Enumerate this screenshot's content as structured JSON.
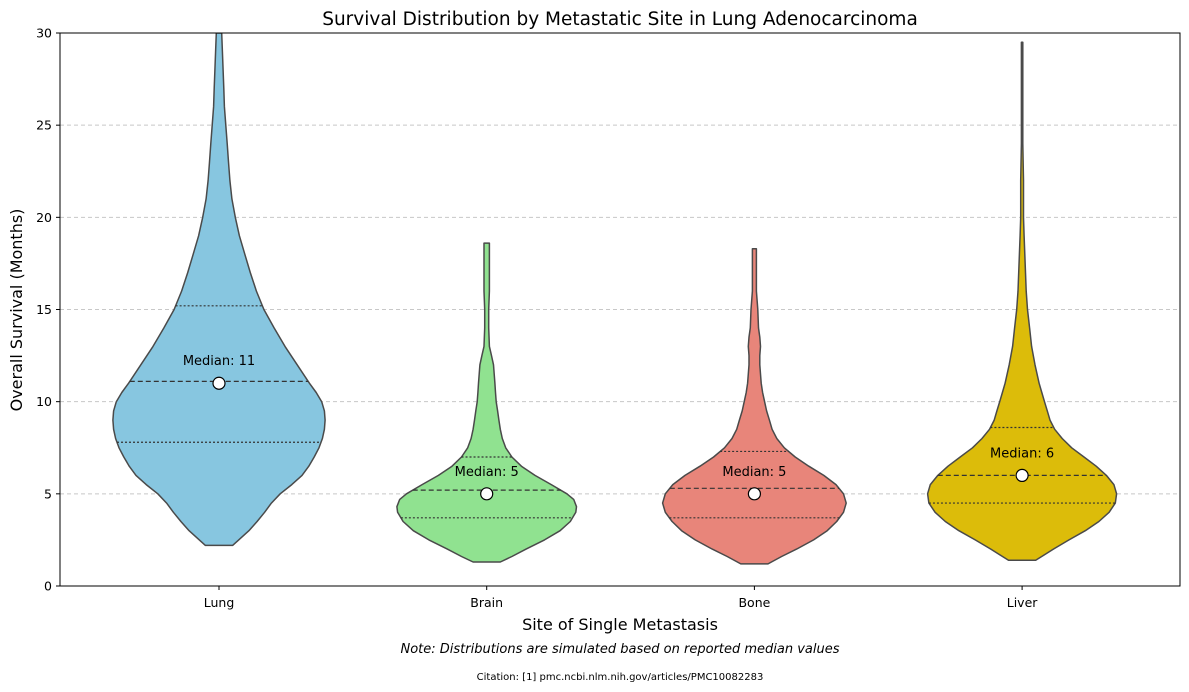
{
  "chart_data": {
    "type": "violin",
    "title": "Survival Distribution by Metastatic Site in Lung Adenocarcinoma",
    "xlabel": "Site of Single Metastasis",
    "ylabel": "Overall Survival (Months)",
    "ylim": [
      0,
      30
    ],
    "yticks": [
      0,
      5,
      10,
      15,
      20,
      25,
      30
    ],
    "grid": "y-dashed",
    "categories": [
      "Lung",
      "Brain",
      "Bone",
      "Liver"
    ],
    "colors": [
      "#87c6e0",
      "#90e290",
      "#e8857a",
      "#dcbc0a"
    ],
    "medians": [
      11,
      5,
      5,
      6
    ],
    "median_labels": [
      "Median: 11",
      "Median: 5",
      "Median: 5",
      "Median: 6"
    ],
    "quartiles": [
      {
        "q1": 7.8,
        "q2": 11.1,
        "q3": 15.2
      },
      {
        "q1": 3.7,
        "q2": 5.2,
        "q3": 7.0
      },
      {
        "q1": 3.7,
        "q2": 5.3,
        "q3": 7.3
      },
      {
        "q1": 4.5,
        "q2": 6.0,
        "q3": 8.6
      }
    ],
    "violins": [
      {
        "name": "Lung",
        "profile": [
          [
            2.2,
            0.2
          ],
          [
            2.5,
            0.29
          ],
          [
            3,
            0.44
          ],
          [
            3.5,
            0.56
          ],
          [
            4,
            0.67
          ],
          [
            4.5,
            0.77
          ],
          [
            5,
            0.9
          ],
          [
            5.5,
            1.07
          ],
          [
            6,
            1.22
          ],
          [
            6.5,
            1.32
          ],
          [
            7,
            1.4
          ],
          [
            7.5,
            1.47
          ],
          [
            8,
            1.52
          ],
          [
            8.5,
            1.55
          ],
          [
            9,
            1.56
          ],
          [
            9.5,
            1.55
          ],
          [
            10,
            1.51
          ],
          [
            10.5,
            1.43
          ],
          [
            11,
            1.33
          ],
          [
            12,
            1.15
          ],
          [
            13,
            0.97
          ],
          [
            14,
            0.81
          ],
          [
            15,
            0.66
          ],
          [
            16,
            0.55
          ],
          [
            17,
            0.46
          ],
          [
            18,
            0.38
          ],
          [
            19,
            0.3
          ],
          [
            20,
            0.24
          ],
          [
            21,
            0.19
          ],
          [
            22,
            0.16
          ],
          [
            23,
            0.14
          ],
          [
            24,
            0.12
          ],
          [
            25,
            0.1
          ],
          [
            26,
            0.08
          ],
          [
            27,
            0.07
          ],
          [
            28,
            0.06
          ],
          [
            29,
            0.05
          ],
          [
            30,
            0.04
          ]
        ]
      },
      {
        "name": "Brain",
        "profile": [
          [
            1.3,
            0.2
          ],
          [
            1.6,
            0.37
          ],
          [
            2,
            0.58
          ],
          [
            2.5,
            0.85
          ],
          [
            3,
            1.08
          ],
          [
            3.5,
            1.23
          ],
          [
            4,
            1.31
          ],
          [
            4.3,
            1.32
          ],
          [
            4.7,
            1.28
          ],
          [
            5,
            1.18
          ],
          [
            5.5,
            0.95
          ],
          [
            6,
            0.71
          ],
          [
            6.5,
            0.51
          ],
          [
            7,
            0.37
          ],
          [
            7.5,
            0.28
          ],
          [
            8,
            0.23
          ],
          [
            8.5,
            0.2
          ],
          [
            9,
            0.18
          ],
          [
            9.5,
            0.16
          ],
          [
            10,
            0.14
          ],
          [
            10.5,
            0.13
          ],
          [
            11,
            0.12
          ],
          [
            11.5,
            0.11
          ],
          [
            12,
            0.1
          ],
          [
            12.5,
            0.07
          ],
          [
            13,
            0.04
          ],
          [
            14,
            0.03
          ],
          [
            15,
            0.03
          ],
          [
            16,
            0.04
          ],
          [
            17,
            0.04
          ],
          [
            18,
            0.04
          ],
          [
            18.6,
            0.04
          ]
        ]
      },
      {
        "name": "Bone",
        "profile": [
          [
            1.2,
            0.2
          ],
          [
            1.6,
            0.4
          ],
          [
            2,
            0.62
          ],
          [
            2.5,
            0.87
          ],
          [
            3,
            1.07
          ],
          [
            3.5,
            1.21
          ],
          [
            4,
            1.31
          ],
          [
            4.5,
            1.35
          ],
          [
            5,
            1.31
          ],
          [
            5.5,
            1.2
          ],
          [
            6,
            1.02
          ],
          [
            6.5,
            0.8
          ],
          [
            7,
            0.6
          ],
          [
            7.5,
            0.44
          ],
          [
            8,
            0.33
          ],
          [
            8.5,
            0.26
          ],
          [
            9,
            0.22
          ],
          [
            9.5,
            0.18
          ],
          [
            10,
            0.15
          ],
          [
            10.5,
            0.12
          ],
          [
            11,
            0.1
          ],
          [
            11.5,
            0.09
          ],
          [
            12,
            0.08
          ],
          [
            12.5,
            0.08
          ],
          [
            13,
            0.09
          ],
          [
            13.5,
            0.08
          ],
          [
            14,
            0.06
          ],
          [
            15,
            0.05
          ],
          [
            16,
            0.03
          ],
          [
            17,
            0.03
          ],
          [
            18,
            0.03
          ],
          [
            18.3,
            0.03
          ]
        ]
      },
      {
        "name": "Liver",
        "profile": [
          [
            1.4,
            0.2
          ],
          [
            1.7,
            0.33
          ],
          [
            2,
            0.46
          ],
          [
            2.5,
            0.69
          ],
          [
            3,
            0.93
          ],
          [
            3.5,
            1.13
          ],
          [
            4,
            1.28
          ],
          [
            4.5,
            1.37
          ],
          [
            5,
            1.39
          ],
          [
            5.5,
            1.35
          ],
          [
            6,
            1.24
          ],
          [
            6.5,
            1.09
          ],
          [
            7,
            0.91
          ],
          [
            7.5,
            0.73
          ],
          [
            8,
            0.59
          ],
          [
            8.5,
            0.48
          ],
          [
            9,
            0.41
          ],
          [
            9.5,
            0.37
          ],
          [
            10,
            0.33
          ],
          [
            10.5,
            0.29
          ],
          [
            11,
            0.25
          ],
          [
            12,
            0.19
          ],
          [
            13,
            0.14
          ],
          [
            14,
            0.11
          ],
          [
            15,
            0.08
          ],
          [
            16,
            0.06
          ],
          [
            17,
            0.05
          ],
          [
            18,
            0.04
          ],
          [
            19,
            0.03
          ],
          [
            20,
            0.02
          ],
          [
            22,
            0.02
          ],
          [
            24,
            0.01
          ],
          [
            26,
            0.01
          ],
          [
            28,
            0.01
          ],
          [
            29.5,
            0.01
          ]
        ]
      }
    ]
  },
  "note": "Note: Distributions are simulated based on reported median values",
  "citation": "Citation: [1] pmc.ncbi.nlm.nih.gov/articles/PMC10082283"
}
